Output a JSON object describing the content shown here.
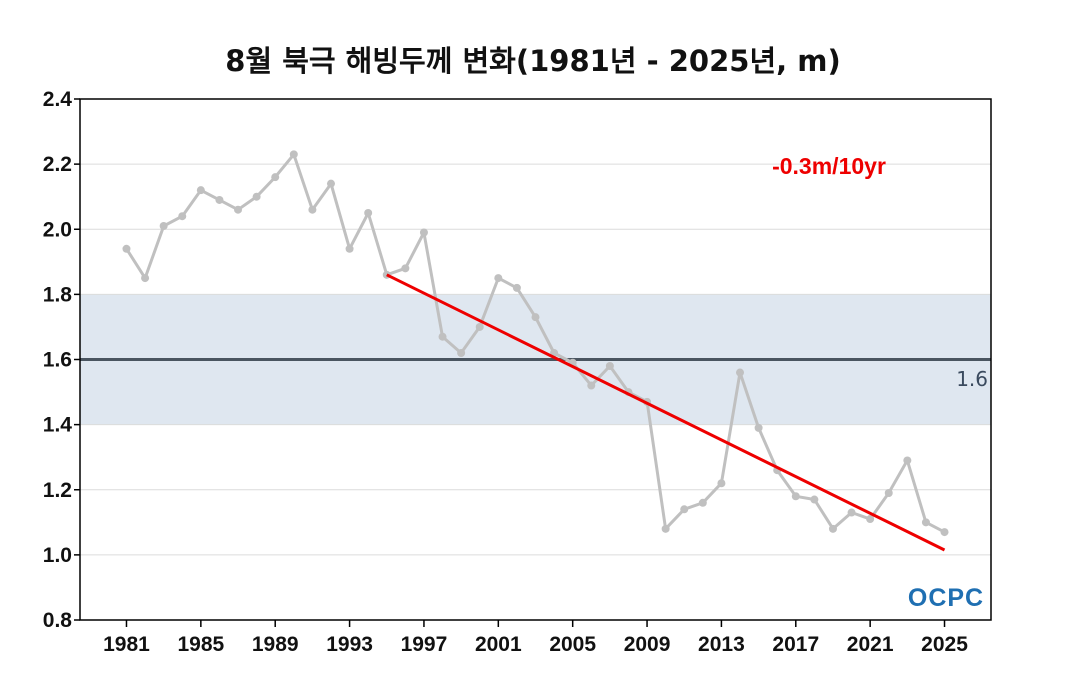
{
  "chart_data": {
    "type": "line",
    "title": "8월 북극 해빙두께 변화(1981년 - 2025년, m)",
    "xlabel": "",
    "ylabel": "",
    "ylim": [
      0.8,
      2.4
    ],
    "yticks": [
      "0.8",
      "1.0",
      "1.2",
      "1.4",
      "1.6",
      "1.8",
      "2.0",
      "2.2",
      "2.4"
    ],
    "xlim": [
      1978.5,
      2027.5
    ],
    "xticks": [
      "1981",
      "1985",
      "1989",
      "1993",
      "1997",
      "2001",
      "2005",
      "2009",
      "2013",
      "2017",
      "2021",
      "2025"
    ],
    "grid": true,
    "series": [
      {
        "color": "#c0c0c0",
        "x": [
          1981,
          1982,
          1983,
          1984,
          1985,
          1986,
          1987,
          1988,
          1989,
          1990,
          1991,
          1992,
          1993,
          1994,
          1995,
          1996,
          1997,
          1998,
          1999,
          2000,
          2001,
          2002,
          2003,
          2004,
          2005,
          2006,
          2007,
          2008,
          2009,
          2010,
          2011,
          2012,
          2013,
          2014,
          2015,
          2016,
          2017,
          2018,
          2019,
          2020,
          2021,
          2022,
          2023,
          2024,
          2025
        ],
        "values": [
          1.94,
          1.85,
          2.01,
          2.04,
          2.12,
          2.09,
          2.06,
          2.1,
          2.16,
          2.23,
          2.06,
          2.14,
          1.94,
          2.05,
          1.86,
          1.88,
          1.99,
          1.67,
          1.62,
          1.7,
          1.85,
          1.82,
          1.73,
          1.62,
          1.59,
          1.52,
          1.58,
          1.5,
          1.47,
          1.08,
          1.14,
          1.16,
          1.22,
          1.56,
          1.39,
          1.26,
          1.18,
          1.17,
          1.08,
          1.13,
          1.11,
          1.19,
          1.29,
          1.1,
          1.07
        ]
      }
    ],
    "trend": {
      "label": "-0.3m/10yr",
      "color": "#ee0000",
      "x": [
        1995,
        2025
      ],
      "values": [
        1.86,
        1.015
      ]
    },
    "reference": {
      "label": "1.6",
      "value": 1.6,
      "band": [
        1.4,
        1.8
      ],
      "line_color": "#4a5560",
      "band_color": "#dfe7f0"
    },
    "logo": "OCPC"
  }
}
